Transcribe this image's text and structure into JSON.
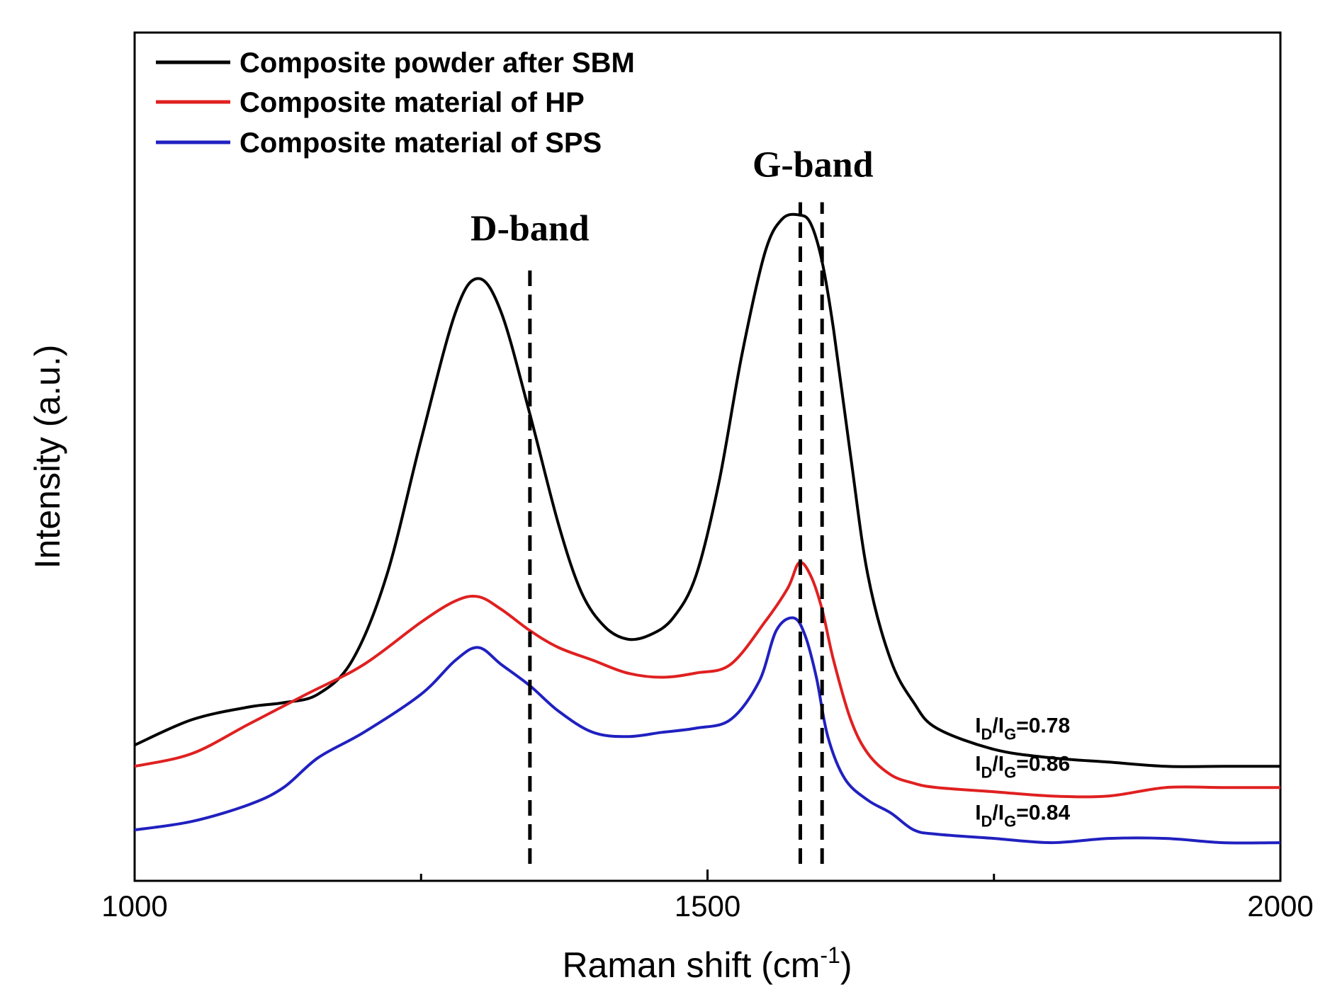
{
  "chart_data": {
    "type": "line",
    "title": "",
    "xlabel": "Raman shift (cm",
    "xlabel_sup": "-1",
    "xlabel_end": ")",
    "ylabel": "Intensity (a.u.)",
    "xlim": [
      1000,
      2000
    ],
    "ylim": [
      0,
      10
    ],
    "xticks": [
      1000,
      1500,
      2000
    ],
    "xtick_labels": [
      "1000",
      "1500",
      "2000"
    ],
    "xminor_ticks": [
      1250,
      1750
    ],
    "grid": false,
    "legend_position": "top-left",
    "series": [
      {
        "name": "Composite powder after SBM",
        "color": "#000000",
        "x": [
          1000,
          1050,
          1100,
          1130,
          1160,
          1190,
          1220,
          1250,
          1280,
          1300,
          1320,
          1345,
          1370,
          1390,
          1410,
          1430,
          1450,
          1470,
          1490,
          1510,
          1530,
          1550,
          1565,
          1580,
          1590,
          1600,
          1610,
          1625,
          1640,
          1660,
          1680,
          1700,
          1750,
          1800,
          1850,
          1900,
          1950,
          2000
        ],
        "y": [
          1.6,
          1.9,
          2.05,
          2.1,
          2.2,
          2.6,
          3.6,
          5.2,
          6.7,
          7.1,
          6.7,
          5.5,
          4.2,
          3.4,
          3.0,
          2.85,
          2.9,
          3.1,
          3.6,
          4.7,
          6.2,
          7.4,
          7.8,
          7.85,
          7.75,
          7.3,
          6.5,
          5.0,
          3.6,
          2.6,
          2.1,
          1.8,
          1.55,
          1.45,
          1.4,
          1.35,
          1.35,
          1.35
        ]
      },
      {
        "name": "Composite material of HP",
        "color": "#e02020",
        "x": [
          1000,
          1050,
          1100,
          1150,
          1200,
          1250,
          1280,
          1300,
          1320,
          1345,
          1370,
          1400,
          1430,
          1460,
          1490,
          1520,
          1550,
          1570,
          1580,
          1590,
          1600,
          1610,
          1625,
          1640,
          1660,
          1680,
          1700,
          1750,
          1800,
          1850,
          1900,
          1950,
          2000
        ],
        "y": [
          1.35,
          1.5,
          1.85,
          2.2,
          2.55,
          3.05,
          3.3,
          3.35,
          3.2,
          2.95,
          2.75,
          2.6,
          2.45,
          2.4,
          2.45,
          2.55,
          3.05,
          3.45,
          3.75,
          3.6,
          3.2,
          2.6,
          1.9,
          1.5,
          1.25,
          1.15,
          1.1,
          1.05,
          1.0,
          1.0,
          1.1,
          1.1,
          1.1
        ]
      },
      {
        "name": "Composite material of SPS",
        "color": "#2020c0",
        "x": [
          1000,
          1050,
          1100,
          1130,
          1160,
          1200,
          1250,
          1280,
          1300,
          1320,
          1345,
          1370,
          1400,
          1430,
          1460,
          1490,
          1520,
          1545,
          1560,
          1575,
          1585,
          1595,
          1605,
          1620,
          1640,
          1660,
          1680,
          1700,
          1750,
          1800,
          1850,
          1900,
          1950,
          2000
        ],
        "y": [
          0.6,
          0.7,
          0.9,
          1.1,
          1.45,
          1.75,
          2.2,
          2.6,
          2.75,
          2.55,
          2.3,
          2.0,
          1.75,
          1.7,
          1.75,
          1.8,
          1.9,
          2.35,
          2.95,
          3.1,
          2.9,
          2.4,
          1.7,
          1.2,
          0.95,
          0.8,
          0.6,
          0.55,
          0.5,
          0.45,
          0.5,
          0.5,
          0.45,
          0.45
        ]
      }
    ],
    "reference_lines": [
      {
        "label": "D-band",
        "x": 1345,
        "y_from": 0.2,
        "y_to": 7.2
      },
      {
        "label": "G-band",
        "x": 1581,
        "y_from": 0.2,
        "y_to": 8.0
      },
      {
        "label": "",
        "x": 1600,
        "y_from": 0.2,
        "y_to": 8.0
      }
    ],
    "band_labels": [
      {
        "text": "D-band",
        "x": 1345,
        "y": 7.55
      },
      {
        "text": "G-band",
        "x": 1592,
        "y": 8.3
      }
    ],
    "annotations": [
      {
        "prefix": "I",
        "sub1": "D",
        "slash": "/I",
        "sub2": "G",
        "value": "=0.78",
        "x": 1775,
        "y": 1.75
      },
      {
        "prefix": "I",
        "sub1": "D",
        "slash": "/I",
        "sub2": "G",
        "value": "=0.86",
        "x": 1775,
        "y": 1.3
      },
      {
        "prefix": "I",
        "sub1": "D",
        "slash": "/I",
        "sub2": "G",
        "value": "=0.84",
        "x": 1775,
        "y": 0.72
      }
    ]
  }
}
